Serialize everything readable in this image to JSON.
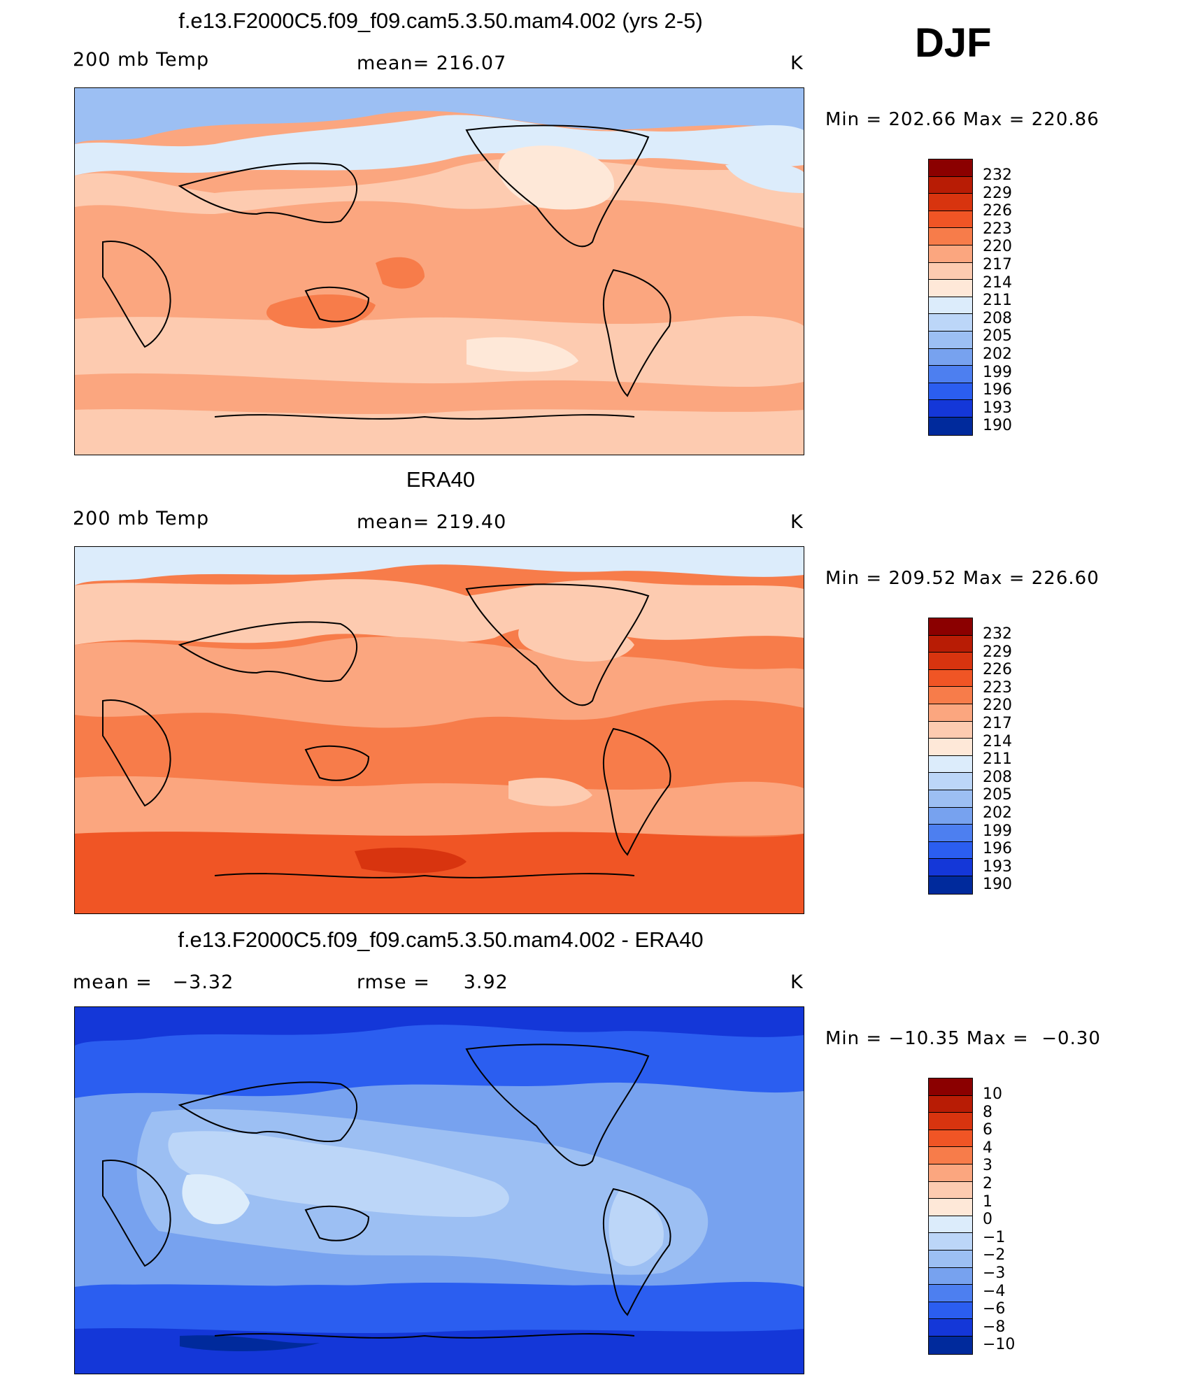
{
  "season": "DJF",
  "panels": [
    {
      "title": "f.e13.F2000C5.f09_f09.cam5.3.50.mam4.002 (yrs 2-5)",
      "left_label": "200 mb Temp",
      "center_label": "mean= 216.07",
      "units": "K",
      "minmax": "Min = 202.66 Max = 220.86",
      "colorbar": {
        "labels": [
          "232",
          "229",
          "226",
          "223",
          "220",
          "217",
          "214",
          "211",
          "208",
          "205",
          "202",
          "199",
          "196",
          "193",
          "190"
        ],
        "colors": [
          "#8b0000",
          "#b81c05",
          "#d8340f",
          "#f05525",
          "#f77c4a",
          "#fba67f",
          "#fdcbb0",
          "#fee8d8",
          "#dcecfb",
          "#bcd6f8",
          "#9cbff3",
          "#77a2ef",
          "#4d7ff0",
          "#2b5ef0",
          "#1437d8",
          "#002a9c"
        ]
      }
    },
    {
      "title": "ERA40",
      "left_label": "200 mb Temp",
      "center_label": "mean= 219.40",
      "units": "K",
      "minmax": "Min = 209.52 Max = 226.60",
      "colorbar": {
        "labels": [
          "232",
          "229",
          "226",
          "223",
          "220",
          "217",
          "214",
          "211",
          "208",
          "205",
          "202",
          "199",
          "196",
          "193",
          "190"
        ],
        "colors": [
          "#8b0000",
          "#b81c05",
          "#d8340f",
          "#f05525",
          "#f77c4a",
          "#fba67f",
          "#fdcbb0",
          "#fee8d8",
          "#dcecfb",
          "#bcd6f8",
          "#9cbff3",
          "#77a2ef",
          "#4d7ff0",
          "#2b5ef0",
          "#1437d8",
          "#002a9c"
        ]
      }
    },
    {
      "title": "f.e13.F2000C5.f09_f09.cam5.3.50.mam4.002 - ERA40",
      "left_label": "mean =   −3.32",
      "center_label": "rmse =     3.92",
      "units": "K",
      "minmax": "Min = −10.35 Max =  −0.30",
      "colorbar": {
        "labels": [
          "10",
          "8",
          "6",
          "4",
          "3",
          "2",
          "1",
          "0",
          "−1",
          "−2",
          "−3",
          "−4",
          "−6",
          "−8",
          "−10"
        ],
        "colors": [
          "#8b0000",
          "#b81c05",
          "#d8340f",
          "#f05525",
          "#f77c4a",
          "#fba67f",
          "#fdcbb0",
          "#fee8d8",
          "#dcecfb",
          "#bcd6f8",
          "#9cbff3",
          "#77a2ef",
          "#4d7ff0",
          "#2b5ef0",
          "#1437d8",
          "#002a9c"
        ]
      }
    }
  ]
}
